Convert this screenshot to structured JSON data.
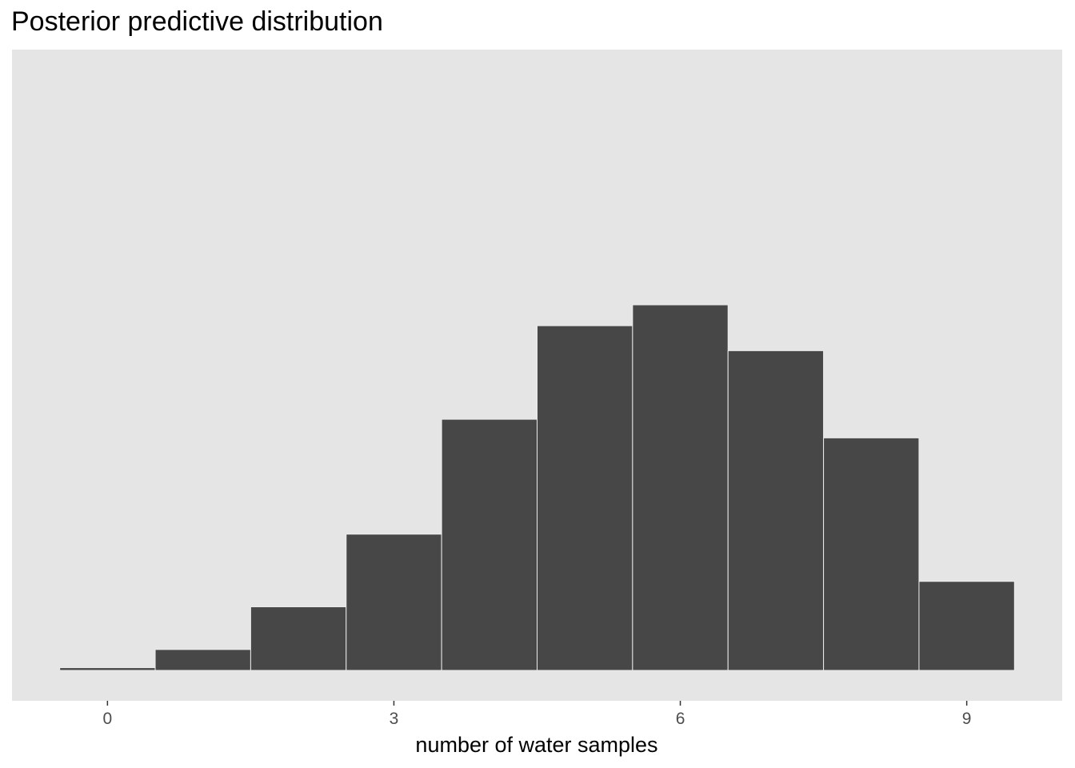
{
  "chart_data": {
    "type": "bar",
    "title": "Posterior predictive distribution",
    "xlabel": "number of water samples",
    "ylabel": "",
    "categories": [
      0,
      1,
      2,
      3,
      4,
      5,
      6,
      7,
      8,
      9
    ],
    "values": [
      6,
      46,
      140,
      300,
      553,
      759,
      805,
      704,
      512,
      196
    ],
    "xlim": [
      -1.0,
      10.0
    ],
    "ylim": [
      0,
      1367
    ],
    "xticks": [
      0,
      3,
      6,
      9
    ],
    "y_axis_shown": false,
    "grid": false,
    "colors": {
      "panel": "#e5e5e5",
      "bar_fill": "#474747",
      "bar_edge": "#ebebeb"
    }
  }
}
